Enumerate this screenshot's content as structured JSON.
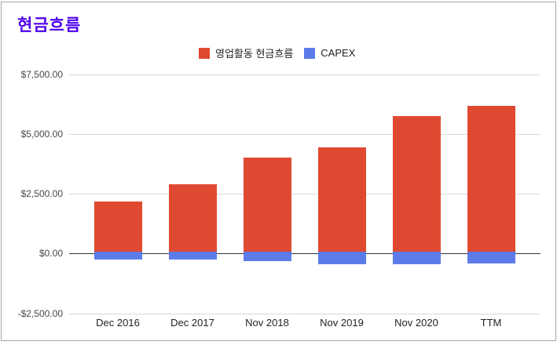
{
  "title": "현금흐름",
  "colors": {
    "title": "#4d00ef",
    "grid": "#d9d9d9",
    "zero_line": "#333333",
    "axis_text": "#464646",
    "category_text": "#222222",
    "frame": "#a6a6a6",
    "series_operating": "#e04931",
    "series_capex": "#5b7ce8"
  },
  "chart_data": {
    "type": "bar",
    "title": "현금흐름",
    "categories": [
      "Dec 2016",
      "Dec 2017",
      "Nov 2018",
      "Nov 2019",
      "Nov 2020",
      "TTM"
    ],
    "series": [
      {
        "name": "영업활동 현금흐름",
        "color": "#e04931",
        "values": [
          2170,
          2900,
          4010,
          4430,
          5760,
          6190
        ]
      },
      {
        "name": "CAPEX",
        "color": "#5b7ce8",
        "values": [
          -260,
          -260,
          -340,
          -460,
          -460,
          -430
        ]
      }
    ],
    "y_ticks": [
      {
        "label": "$7,500.00",
        "value": 7500
      },
      {
        "label": "$5,000.00",
        "value": 5000
      },
      {
        "label": "$2,500.00",
        "value": 2500
      },
      {
        "label": "$0.00",
        "value": 0
      },
      {
        "label": "-$2,500.00",
        "value": -2500
      }
    ],
    "ylim": [
      -2500,
      7500
    ],
    "xlabel": "",
    "ylabel": "",
    "grid": true,
    "legend_position": "top"
  }
}
